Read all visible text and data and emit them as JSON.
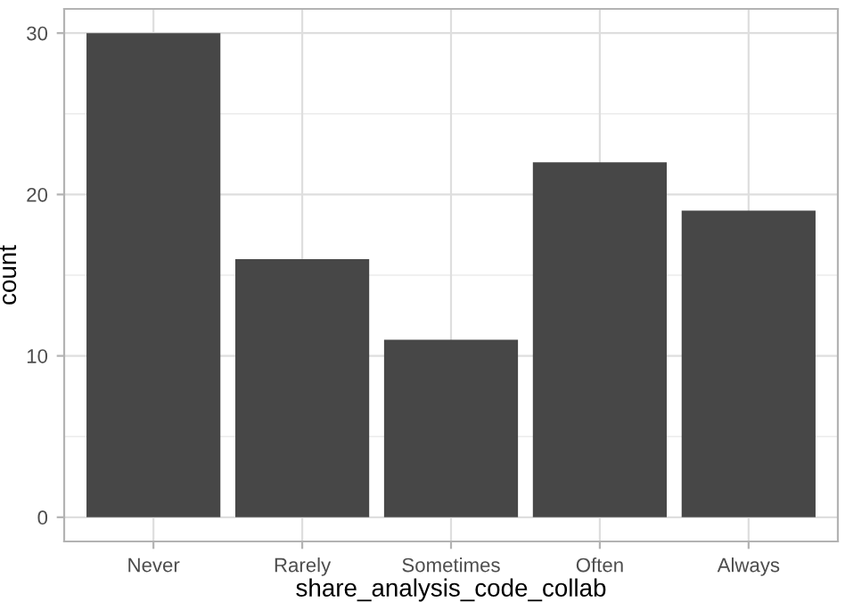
{
  "chart_data": {
    "type": "bar",
    "xlabel": "share_analysis_code_collab",
    "ylabel": "count",
    "categories": [
      "Never",
      "Rarely",
      "Sometimes",
      "Often",
      "Always"
    ],
    "values": [
      30,
      16,
      11,
      22,
      19
    ],
    "color": "#474747",
    "ylim": [
      -1.5,
      31.5
    ],
    "yticks": [
      0,
      {
        "value": 5,
        "label": null
      },
      10,
      {
        "value": 15,
        "label": null
      },
      20,
      {
        "value": 25,
        "label": null
      },
      30
    ],
    "grid": true
  }
}
